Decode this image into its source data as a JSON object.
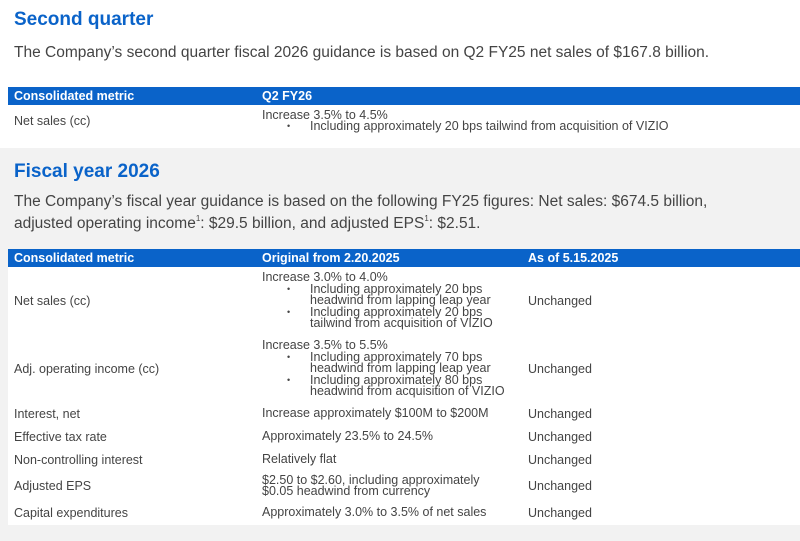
{
  "q2": {
    "title": "Second quarter",
    "intro": "The Company’s second quarter fiscal 2026 guidance is based on Q2 FY25 net sales of $167.8 billion.",
    "table": {
      "headers": [
        "Consolidated metric",
        "Q2 FY26"
      ],
      "rows": [
        {
          "metric": "Net sales (cc)",
          "guidance": "Increase 3.5% to 4.5%",
          "bullets": [
            "Including approximately 20 bps tailwind from acquisition of VIZIO"
          ]
        }
      ]
    }
  },
  "fy": {
    "title": "Fiscal year 2026",
    "intro": [
      "The Company’s fiscal year guidance is based on the following FY25 figures: Net sales: $674.5 billion, adjusted operating income",
      "1",
      ": $29.5 billion, and adjusted EPS",
      "1",
      ": $2.51."
    ],
    "table": {
      "headers": [
        "Consolidated metric",
        "Original from 2.20.2025",
        "As of 5.15.2025"
      ],
      "rows": [
        {
          "metric": "Net sales (cc)",
          "guidance": "Increase 3.0% to 4.0%",
          "bullets": [
            "Including approximately 20 bps headwind from lapping leap year",
            "Including approximately 20 bps tailwind from acquisition of VIZIO"
          ],
          "status": "Unchanged"
        },
        {
          "metric": "Adj. operating income (cc)",
          "guidance": "Increase 3.5% to 5.5%",
          "bullets": [
            "Including approximately 70 bps headwind from lapping leap year",
            "Including approximately 80 bps headwind from acquisition of VIZIO"
          ],
          "status": "Unchanged"
        },
        {
          "metric": "Interest, net",
          "guidance": "Increase approximately $100M to $200M",
          "bullets": [],
          "status": "Unchanged"
        },
        {
          "metric": "Effective tax rate",
          "guidance": "Approximately 23.5% to 24.5%",
          "bullets": [],
          "status": "Unchanged"
        },
        {
          "metric": "Non-controlling interest",
          "guidance": "Relatively flat",
          "bullets": [],
          "status": "Unchanged"
        },
        {
          "metric": "Adjusted EPS",
          "guidance": "$2.50 to $2.60, including approximately $0.05 headwind from currency",
          "bullets": [],
          "status": "Unchanged"
        },
        {
          "metric": "Capital expenditures",
          "guidance": "Approximately 3.0% to 3.5% of net sales",
          "bullets": [],
          "status": "Unchanged"
        }
      ]
    }
  }
}
